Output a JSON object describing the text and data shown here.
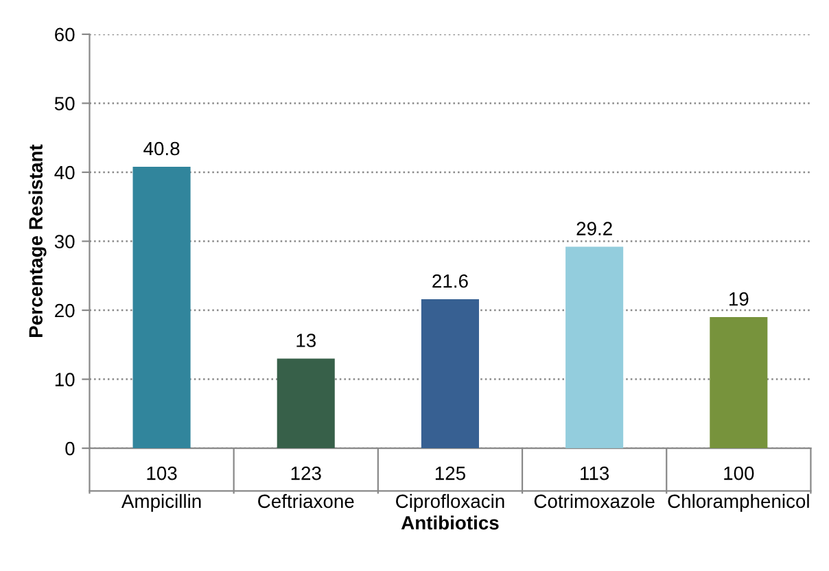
{
  "chart_data": {
    "type": "bar",
    "xlabel": "Antibiotics",
    "ylabel": "Percentage Resistant",
    "categories": [
      "Ampicillin",
      "Ceftriaxone",
      "Ciprofloxacin",
      "Cotrimoxazole",
      "Chloramphenicol"
    ],
    "values": [
      40.8,
      13,
      21.6,
      29.2,
      19
    ],
    "colors": [
      "#31859c",
      "#376049",
      "#376092",
      "#93cddd",
      "#77933c"
    ],
    "value_labels": [
      "40.8",
      "13",
      "21.6",
      "29.2",
      "19"
    ],
    "annotations": [
      "103",
      "123",
      "125",
      "113",
      "100"
    ],
    "ylim": [
      0,
      60
    ],
    "yticks": [
      0,
      10,
      20,
      30,
      40,
      50,
      60
    ],
    "grid": "y",
    "legend": false
  }
}
